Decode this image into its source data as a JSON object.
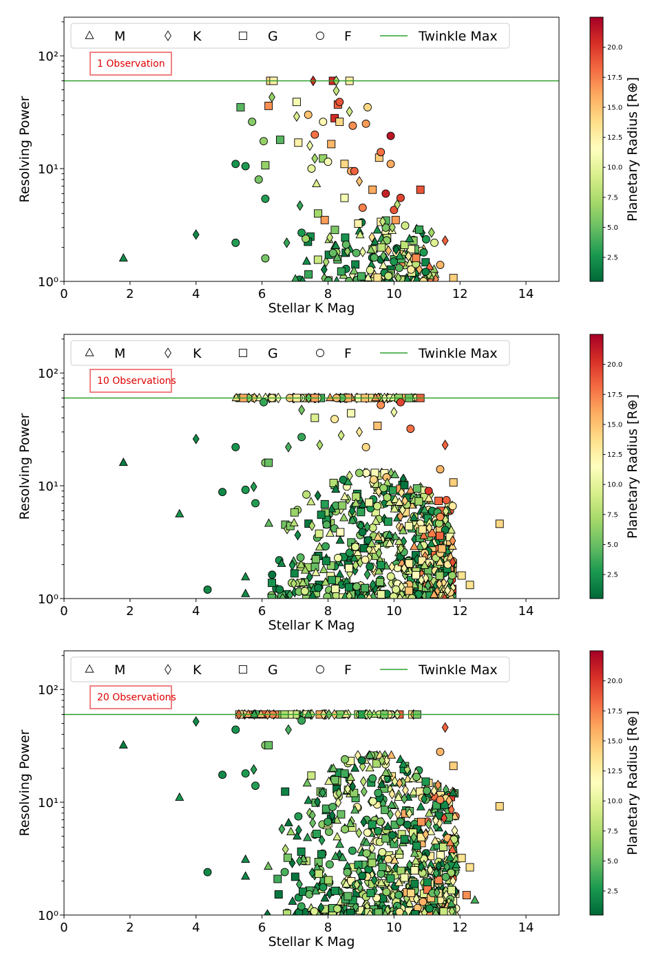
{
  "figure": {
    "colorbar": {
      "label": "Planetary Radius [R⊕]",
      "ticks": [
        "2.5",
        "5.0",
        "7.5",
        "10.0",
        "12.5",
        "15.0",
        "17.5",
        "20.0"
      ],
      "tick_values": [
        2.5,
        5.0,
        7.5,
        10.0,
        12.5,
        15.0,
        17.5,
        20.0
      ],
      "range": [
        0.5,
        22.5
      ],
      "colormap": "RdYlGn_r",
      "colors": [
        "#006837",
        "#1a9850",
        "#66bd63",
        "#a6d96a",
        "#d9ef8b",
        "#ffffbf",
        "#fee08b",
        "#fdae61",
        "#f46d43",
        "#d73027",
        "#a50026"
      ]
    },
    "legend": {
      "entries": [
        {
          "marker": "triangle",
          "label": "M"
        },
        {
          "marker": "diamond",
          "label": "K"
        },
        {
          "marker": "square",
          "label": "G"
        },
        {
          "marker": "circle",
          "label": "F"
        },
        {
          "marker": "line",
          "label": "Twinkle Max"
        }
      ],
      "line_color": "#2ca02c"
    }
  },
  "chart_data": [
    {
      "type": "scatter",
      "annotation": "1 Observation",
      "xlabel": "Stellar K Mag",
      "ylabel": "Resolving Power",
      "xlim": [
        0,
        15
      ],
      "ylim": [
        1,
        220
      ],
      "yscale": "log",
      "xticks": [
        "0",
        "2",
        "4",
        "6",
        "8",
        "10",
        "12",
        "14"
      ],
      "yticks": [
        "10⁰",
        "10¹",
        "10²"
      ],
      "hline": {
        "y": 60,
        "label": "Twinkle Max"
      },
      "points": [
        {
          "x": 1.8,
          "y": 1.6,
          "marker": "triangle",
          "r": 2.0
        },
        {
          "x": 4.0,
          "y": 2.6,
          "marker": "diamond",
          "r": 2.0
        },
        {
          "x": 5.2,
          "y": 11.0,
          "marker": "circle",
          "r": 2.5
        },
        {
          "x": 5.5,
          "y": 10.5,
          "marker": "circle",
          "r": 2.8
        },
        {
          "x": 5.2,
          "y": 2.2,
          "marker": "circle",
          "r": 3.0
        },
        {
          "x": 5.35,
          "y": 35,
          "marker": "square",
          "r": 4.5
        },
        {
          "x": 5.7,
          "y": 26,
          "marker": "circle",
          "r": 6.0
        },
        {
          "x": 5.9,
          "y": 8.0,
          "marker": "circle",
          "r": 5.5
        },
        {
          "x": 6.05,
          "y": 17.5,
          "marker": "circle",
          "r": 6.5
        },
        {
          "x": 6.1,
          "y": 10.7,
          "marker": "square",
          "r": 6.5
        },
        {
          "x": 6.1,
          "y": 5.4,
          "marker": "circle",
          "r": 3.0
        },
        {
          "x": 6.1,
          "y": 1.6,
          "marker": "circle",
          "r": 5.5
        },
        {
          "x": 6.2,
          "y": 36,
          "marker": "square",
          "r": 17.0
        },
        {
          "x": 6.3,
          "y": 43,
          "marker": "diamond",
          "r": 6.5
        },
        {
          "x": 6.25,
          "y": 60,
          "marker": "square",
          "r": 14.0
        },
        {
          "x": 6.35,
          "y": 60,
          "marker": "square",
          "r": 12.5
        },
        {
          "x": 6.55,
          "y": 18,
          "marker": "square",
          "r": 4.5
        },
        {
          "x": 6.75,
          "y": 2.2,
          "marker": "diamond",
          "r": 3.5
        },
        {
          "x": 7.05,
          "y": 39,
          "marker": "square",
          "r": 11.0
        },
        {
          "x": 7.05,
          "y": 29,
          "marker": "diamond",
          "r": 9.5
        },
        {
          "x": 7.1,
          "y": 17,
          "marker": "square",
          "r": 12.5
        },
        {
          "x": 7.15,
          "y": 4.7,
          "marker": "diamond",
          "r": 3.5
        },
        {
          "x": 7.2,
          "y": 2.7,
          "marker": "circle",
          "r": 2.8
        },
        {
          "x": 7.45,
          "y": 16,
          "marker": "diamond",
          "r": 10.5
        },
        {
          "x": 7.4,
          "y": 30,
          "marker": "circle",
          "r": 15.0
        },
        {
          "x": 7.5,
          "y": 10.0,
          "marker": "circle",
          "r": 10.0
        },
        {
          "x": 7.55,
          "y": 60,
          "marker": "diamond",
          "r": 20.5
        },
        {
          "x": 7.6,
          "y": 12.3,
          "marker": "diamond",
          "r": 7.0
        },
        {
          "x": 7.6,
          "y": 20,
          "marker": "circle",
          "r": 18.0
        },
        {
          "x": 7.65,
          "y": 7.3,
          "marker": "triangle",
          "r": 9.5
        },
        {
          "x": 7.7,
          "y": 4.0,
          "marker": "square",
          "r": 7.0
        },
        {
          "x": 7.85,
          "y": 12.3,
          "marker": "square",
          "r": 6.5
        },
        {
          "x": 7.85,
          "y": 26,
          "marker": "circle",
          "r": 12.0
        },
        {
          "x": 7.9,
          "y": 3.5,
          "marker": "square",
          "r": 16.5
        },
        {
          "x": 8.0,
          "y": 11.5,
          "marker": "circle",
          "r": 11.0
        },
        {
          "x": 8.1,
          "y": 16.5,
          "marker": "square",
          "r": 15.5
        },
        {
          "x": 8.15,
          "y": 60,
          "marker": "square",
          "r": 20.5
        },
        {
          "x": 8.25,
          "y": 60,
          "marker": "diamond",
          "r": 7.5
        },
        {
          "x": 8.25,
          "y": 49,
          "marker": "diamond",
          "r": 8.5
        },
        {
          "x": 8.2,
          "y": 28,
          "marker": "square",
          "r": 20.5
        },
        {
          "x": 8.3,
          "y": 37,
          "marker": "square",
          "r": 18.5
        },
        {
          "x": 8.35,
          "y": 26,
          "marker": "square",
          "r": 14.0
        },
        {
          "x": 8.35,
          "y": 39,
          "marker": "circle",
          "r": 19.0
        },
        {
          "x": 8.5,
          "y": 11.0,
          "marker": "square",
          "r": 14.0
        },
        {
          "x": 8.5,
          "y": 5.5,
          "marker": "square",
          "r": 11.0
        },
        {
          "x": 8.65,
          "y": 60,
          "marker": "square",
          "r": 12.5
        },
        {
          "x": 8.65,
          "y": 32,
          "marker": "diamond",
          "r": 9.0
        },
        {
          "x": 8.7,
          "y": 9.5,
          "marker": "circle",
          "r": 16.0
        },
        {
          "x": 8.75,
          "y": 24,
          "marker": "circle",
          "r": 17.0
        },
        {
          "x": 8.8,
          "y": 9.5,
          "marker": "circle",
          "r": 18.5
        },
        {
          "x": 8.95,
          "y": 7.7,
          "marker": "diamond",
          "r": 15.0
        },
        {
          "x": 9.05,
          "y": 4.5,
          "marker": "circle",
          "r": 17.5
        },
        {
          "x": 9.15,
          "y": 25,
          "marker": "circle",
          "r": 16.5
        },
        {
          "x": 9.2,
          "y": 35,
          "marker": "circle",
          "r": 14.0
        },
        {
          "x": 9.35,
          "y": 6.5,
          "marker": "square",
          "r": 16.0
        },
        {
          "x": 9.55,
          "y": 12.5,
          "marker": "square",
          "r": 14.5
        },
        {
          "x": 9.6,
          "y": 14.0,
          "marker": "circle",
          "r": 18.0
        },
        {
          "x": 9.75,
          "y": 6.0,
          "marker": "circle",
          "r": 21.0
        },
        {
          "x": 9.9,
          "y": 19.5,
          "marker": "circle",
          "r": 21.5
        },
        {
          "x": 9.9,
          "y": 11.0,
          "marker": "circle",
          "r": 16.0
        },
        {
          "x": 10.0,
          "y": 4.3,
          "marker": "circle",
          "r": 19.0
        },
        {
          "x": 10.1,
          "y": 4.8,
          "marker": "diamond",
          "r": 8.0
        },
        {
          "x": 10.2,
          "y": 5.5,
          "marker": "circle",
          "r": 19.5
        },
        {
          "x": 10.05,
          "y": 3.5,
          "marker": "square",
          "r": 16.5
        },
        {
          "x": 10.8,
          "y": 6.5,
          "marker": "square",
          "r": 19.0
        },
        {
          "x": 11.55,
          "y": 2.3,
          "marker": "diamond",
          "r": 18.5
        },
        {
          "x": 11.4,
          "y": 1.4,
          "marker": "circle",
          "r": 15.5
        },
        {
          "x": 11.8,
          "y": 1.07,
          "marker": "square",
          "r": 14.5
        }
      ],
      "cloud": {
        "seed": 11,
        "n": 170,
        "xmin": 6.9,
        "xmax": 11.3,
        "ymin": 1.0,
        "ymax": 3.6,
        "rmin": 1.0,
        "rmax": 20.0
      }
    },
    {
      "type": "scatter",
      "annotation": "10 Observations",
      "xlabel": "Stellar K Mag",
      "ylabel": "Resolving Power",
      "xlim": [
        0,
        15
      ],
      "ylim": [
        1,
        220
      ],
      "yscale": "log",
      "xticks": [
        "0",
        "2",
        "4",
        "6",
        "8",
        "10",
        "12",
        "14"
      ],
      "yticks": [
        "10⁰",
        "10¹",
        "10²"
      ],
      "hline": {
        "y": 60,
        "label": "Twinkle Max"
      },
      "points": [
        {
          "x": 1.8,
          "y": 16,
          "marker": "triangle",
          "r": 1.5
        },
        {
          "x": 3.5,
          "y": 5.6,
          "marker": "triangle",
          "r": 2.5
        },
        {
          "x": 4.0,
          "y": 26,
          "marker": "diamond",
          "r": 2.0
        },
        {
          "x": 4.35,
          "y": 1.2,
          "marker": "circle",
          "r": 2.0
        },
        {
          "x": 4.8,
          "y": 8.8,
          "marker": "circle",
          "r": 2.0
        },
        {
          "x": 5.2,
          "y": 22,
          "marker": "circle",
          "r": 2.5
        },
        {
          "x": 5.5,
          "y": 1.55,
          "marker": "triangle",
          "r": 2.2
        },
        {
          "x": 5.5,
          "y": 1.1,
          "marker": "triangle",
          "r": 2.0
        },
        {
          "x": 5.5,
          "y": 9.2,
          "marker": "circle",
          "r": 2.8
        },
        {
          "x": 5.75,
          "y": 9.8,
          "marker": "diamond",
          "r": 3.0
        },
        {
          "x": 5.8,
          "y": 7.0,
          "marker": "circle",
          "r": 3.0
        },
        {
          "x": 6.05,
          "y": 55,
          "marker": "circle",
          "r": 3.5
        },
        {
          "x": 6.1,
          "y": 16,
          "marker": "circle",
          "r": 6.0
        },
        {
          "x": 6.2,
          "y": 16,
          "marker": "square",
          "r": 5.0
        },
        {
          "x": 6.8,
          "y": 22,
          "marker": "diamond",
          "r": 4.0
        },
        {
          "x": 7.05,
          "y": 60,
          "marker": "square",
          "r": 13.0
        },
        {
          "x": 7.2,
          "y": 47,
          "marker": "diamond",
          "r": 5.5
        },
        {
          "x": 7.2,
          "y": 27,
          "marker": "circle",
          "r": 3.5
        },
        {
          "x": 7.6,
          "y": 40,
          "marker": "square",
          "r": 9.5
        },
        {
          "x": 7.75,
          "y": 23,
          "marker": "diamond",
          "r": 7.5
        },
        {
          "x": 8.2,
          "y": 39,
          "marker": "circle",
          "r": 13.0
        },
        {
          "x": 8.4,
          "y": 28,
          "marker": "diamond",
          "r": 9.0
        },
        {
          "x": 8.7,
          "y": 44,
          "marker": "square",
          "r": 11.0
        },
        {
          "x": 8.95,
          "y": 30,
          "marker": "diamond",
          "r": 13.0
        },
        {
          "x": 9.15,
          "y": 22,
          "marker": "circle",
          "r": 14.0
        },
        {
          "x": 9.5,
          "y": 34,
          "marker": "square",
          "r": 15.0
        },
        {
          "x": 9.6,
          "y": 52,
          "marker": "circle",
          "r": 17.0
        },
        {
          "x": 10.0,
          "y": 45,
          "marker": "diamond",
          "r": 10.5
        },
        {
          "x": 10.2,
          "y": 55,
          "marker": "circle",
          "r": 19.5
        },
        {
          "x": 10.5,
          "y": 32,
          "marker": "circle",
          "r": 18.0
        },
        {
          "x": 10.8,
          "y": 60,
          "marker": "square",
          "r": 18.5
        },
        {
          "x": 11.05,
          "y": 9.0,
          "marker": "circle",
          "r": 20.0
        },
        {
          "x": 11.55,
          "y": 23,
          "marker": "diamond",
          "r": 18.5
        },
        {
          "x": 11.4,
          "y": 14,
          "marker": "circle",
          "r": 15.5
        },
        {
          "x": 11.4,
          "y": 5.3,
          "marker": "circle",
          "r": 17.0
        },
        {
          "x": 11.8,
          "y": 10.7,
          "marker": "square",
          "r": 14.5
        },
        {
          "x": 12.05,
          "y": 1.6,
          "marker": "square",
          "r": 13.5
        },
        {
          "x": 12.3,
          "y": 1.32,
          "marker": "square",
          "r": 13.5
        },
        {
          "x": 13.2,
          "y": 4.6,
          "marker": "square",
          "r": 14.0
        }
      ],
      "topline": {
        "seed": 21,
        "n": 70,
        "xmin": 5.2,
        "xmax": 10.8,
        "y": 60,
        "rmin": 3.0,
        "rmax": 19.0
      },
      "cloud": {
        "seed": 22,
        "n": 650,
        "xmin": 6.0,
        "xmax": 11.8,
        "ymin": 1.0,
        "ymax": 13.0,
        "rmin": 1.0,
        "rmax": 20.0
      }
    },
    {
      "type": "scatter",
      "annotation": "20 Observations",
      "xlabel": "Stellar K Mag",
      "ylabel": "Resolving Power",
      "xlim": [
        0,
        15
      ],
      "ylim": [
        1,
        220
      ],
      "yscale": "log",
      "xticks": [
        "0",
        "2",
        "4",
        "6",
        "8",
        "10",
        "12",
        "14"
      ],
      "yticks": [
        "10⁰",
        "10¹",
        "10²"
      ],
      "hline": {
        "y": 60,
        "label": "Twinkle Max"
      },
      "points": [
        {
          "x": 1.8,
          "y": 32,
          "marker": "triangle",
          "r": 1.5
        },
        {
          "x": 3.5,
          "y": 11,
          "marker": "triangle",
          "r": 2.5
        },
        {
          "x": 4.0,
          "y": 52,
          "marker": "diamond",
          "r": 2.0
        },
        {
          "x": 4.35,
          "y": 2.4,
          "marker": "circle",
          "r": 2.0
        },
        {
          "x": 4.8,
          "y": 17.5,
          "marker": "circle",
          "r": 2.0
        },
        {
          "x": 5.2,
          "y": 44,
          "marker": "circle",
          "r": 2.5
        },
        {
          "x": 5.5,
          "y": 3.1,
          "marker": "triangle",
          "r": 2.2
        },
        {
          "x": 5.5,
          "y": 2.2,
          "marker": "triangle",
          "r": 2.0
        },
        {
          "x": 5.5,
          "y": 18,
          "marker": "circle",
          "r": 2.8
        },
        {
          "x": 5.75,
          "y": 19.5,
          "marker": "diamond",
          "r": 3.0
        },
        {
          "x": 5.8,
          "y": 14,
          "marker": "circle",
          "r": 3.0
        },
        {
          "x": 6.1,
          "y": 32,
          "marker": "circle",
          "r": 6.0
        },
        {
          "x": 6.2,
          "y": 32,
          "marker": "square",
          "r": 5.0
        },
        {
          "x": 6.8,
          "y": 44,
          "marker": "diamond",
          "r": 4.0
        },
        {
          "x": 7.2,
          "y": 53,
          "marker": "circle",
          "r": 3.5
        },
        {
          "x": 11.55,
          "y": 46,
          "marker": "diamond",
          "r": 18.5
        },
        {
          "x": 11.4,
          "y": 28,
          "marker": "circle",
          "r": 15.5
        },
        {
          "x": 11.8,
          "y": 21,
          "marker": "square",
          "r": 14.5
        },
        {
          "x": 11.4,
          "y": 10.5,
          "marker": "circle",
          "r": 17.0
        },
        {
          "x": 12.05,
          "y": 3.2,
          "marker": "square",
          "r": 13.5
        },
        {
          "x": 12.3,
          "y": 2.65,
          "marker": "square",
          "r": 13.5
        },
        {
          "x": 13.2,
          "y": 9.2,
          "marker": "square",
          "r": 14.0
        },
        {
          "x": 12.2,
          "y": 1.5,
          "marker": "square",
          "r": 17.0
        },
        {
          "x": 12.45,
          "y": 1.35,
          "marker": "triangle",
          "r": 4.0
        }
      ],
      "topline": {
        "seed": 31,
        "n": 70,
        "xmin": 5.2,
        "xmax": 10.8,
        "y": 60,
        "rmin": 3.0,
        "rmax": 19.0
      },
      "cloud": {
        "seed": 32,
        "n": 720,
        "xmin": 6.0,
        "xmax": 11.9,
        "ymin": 1.0,
        "ymax": 26.0,
        "rmin": 1.0,
        "rmax": 20.0
      }
    }
  ]
}
